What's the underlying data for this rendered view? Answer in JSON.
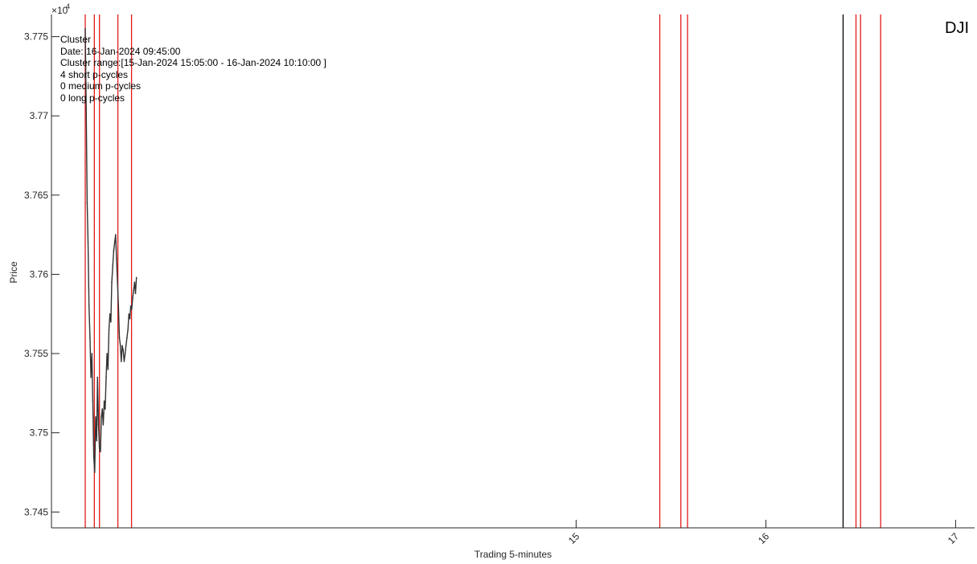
{
  "chart_data": {
    "type": "line",
    "ticker": "DJI",
    "xlabel": "Trading 5-minutes",
    "ylabel": "Price",
    "y_exponent_label": "×10",
    "y_exponent_power": "4",
    "xlim": [
      12.235,
      17.1
    ],
    "ylim": [
      3.744,
      3.7764
    ],
    "y_ticks": [
      {
        "value": 3.745,
        "label": "3.745"
      },
      {
        "value": 3.75,
        "label": "3.75"
      },
      {
        "value": 3.755,
        "label": "3.755"
      },
      {
        "value": 3.76,
        "label": "3.76"
      },
      {
        "value": 3.765,
        "label": "3.765"
      },
      {
        "value": 3.77,
        "label": "3.77"
      },
      {
        "value": 3.775,
        "label": "3.775"
      }
    ],
    "x_ticks": [
      {
        "value": 15,
        "label": "15"
      },
      {
        "value": 16,
        "label": "16"
      },
      {
        "value": 17,
        "label": "17"
      }
    ],
    "annotation_lines": [
      "Cluster",
      "Date: 16-Jan-2024 09:45:00",
      "Cluster range:[15-Jan-2024 15:05:00 - 16-Jan-2024 10:10:00 ]",
      "4 short p-cycles",
      "0 medium p-cycles",
      "0 long p-cycles"
    ],
    "vertical_lines": [
      {
        "x": 12.413,
        "color": "#e41a1c"
      },
      {
        "x": 12.461,
        "color": "#e41a1c"
      },
      {
        "x": 12.488,
        "color": "#e41a1c"
      },
      {
        "x": 12.585,
        "color": "#e41a1c"
      },
      {
        "x": 12.657,
        "color": "#e41a1c"
      },
      {
        "x": 15.441,
        "color": "#e41a1c"
      },
      {
        "x": 15.552,
        "color": "#e41a1c"
      },
      {
        "x": 15.587,
        "color": "#e41a1c"
      },
      {
        "x": 16.407,
        "color": "#000000"
      },
      {
        "x": 16.475,
        "color": "#e41a1c"
      },
      {
        "x": 16.499,
        "color": "#e41a1c"
      },
      {
        "x": 16.605,
        "color": "#e41a1c"
      }
    ],
    "series": [
      {
        "color": "#333333",
        "x": [
          12.413,
          12.418,
          12.423,
          12.428,
          12.433,
          12.438,
          12.443,
          12.448,
          12.453,
          12.458,
          12.463,
          12.468,
          12.473,
          12.478,
          12.483,
          12.488,
          12.493,
          12.498,
          12.503,
          12.508,
          12.513,
          12.518,
          12.523,
          12.528,
          12.533,
          12.538,
          12.543,
          12.548,
          12.553,
          12.558,
          12.563,
          12.568,
          12.573,
          12.578,
          12.583,
          12.588,
          12.593,
          12.598,
          12.603,
          12.608,
          12.613,
          12.618,
          12.623,
          12.628,
          12.633,
          12.638,
          12.643,
          12.648,
          12.653,
          12.658,
          12.663,
          12.668,
          12.673,
          12.678,
          12.683
        ],
        "y": [
          3.7755,
          3.7705,
          3.7645,
          3.762,
          3.758,
          3.756,
          3.7535,
          3.755,
          3.752,
          3.7485,
          3.7475,
          3.751,
          3.7495,
          3.7535,
          3.7505,
          3.749,
          3.7488,
          3.751,
          3.7515,
          3.7505,
          3.752,
          3.7515,
          3.7535,
          3.755,
          3.754,
          3.7565,
          3.7575,
          3.757,
          3.7595,
          3.7605,
          3.7615,
          3.762,
          3.7625,
          3.761,
          3.7595,
          3.758,
          3.756,
          3.7555,
          3.7545,
          3.7555,
          3.7552,
          3.7545,
          3.755,
          3.7555,
          3.756,
          3.7565,
          3.7575,
          3.7572,
          3.758,
          3.7578,
          3.7585,
          3.759,
          3.7595,
          3.7588,
          3.7598
        ]
      }
    ]
  }
}
